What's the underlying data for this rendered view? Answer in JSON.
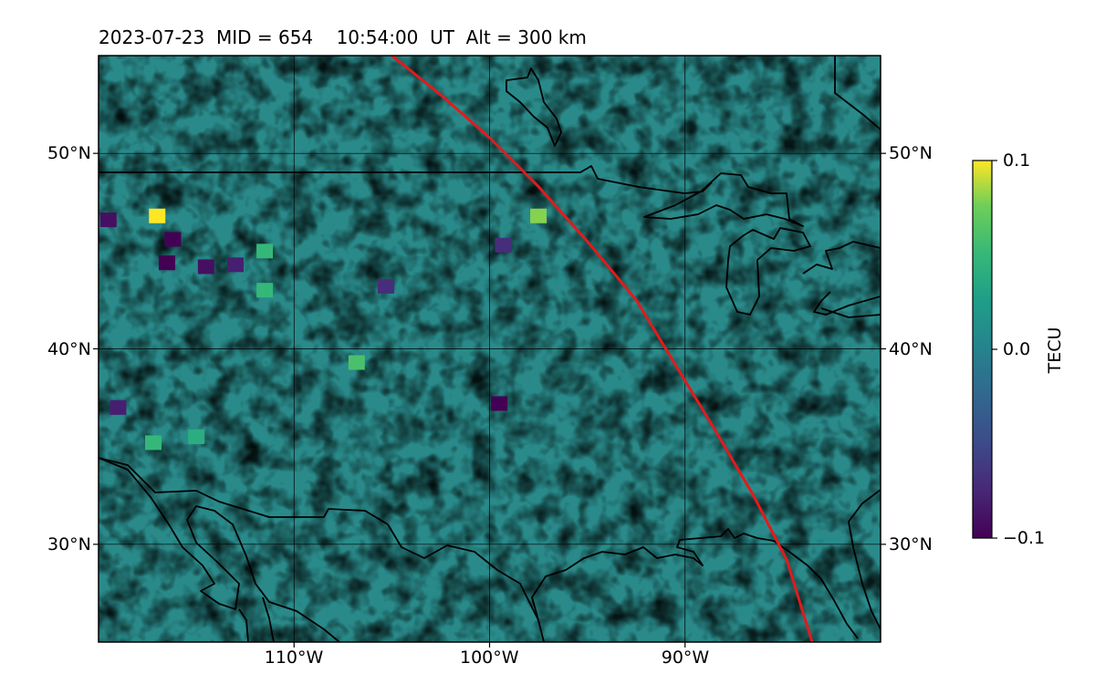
{
  "title": "2023-07-23  MID = 654    10:54:00  UT  Alt = 300 km",
  "map": {
    "projection": "plate-carree",
    "lon_range": [
      -120,
      -80
    ],
    "lat_range": [
      25,
      55
    ],
    "grid": true,
    "lon_ticks": [
      {
        "value": -110,
        "label": "110°W"
      },
      {
        "value": -100,
        "label": "100°W"
      },
      {
        "value": -90,
        "label": "90°W"
      }
    ],
    "lat_ticks": [
      {
        "value": 50,
        "label": "50°N"
      },
      {
        "value": 40,
        "label": "40°N"
      },
      {
        "value": 30,
        "label": "30°N"
      }
    ],
    "field": "TEC perturbation",
    "terminator_color": "#e31a1c",
    "terminator_path": [
      [
        -105.0,
        55.0
      ],
      [
        -102.5,
        53.0
      ],
      [
        -100.0,
        50.8
      ],
      [
        -97.5,
        48.3
      ],
      [
        -95.0,
        45.5
      ],
      [
        -92.5,
        42.5
      ],
      [
        -90.5,
        39.2
      ],
      [
        -88.5,
        35.9
      ],
      [
        -86.5,
        32.5
      ],
      [
        -84.8,
        29.2
      ],
      [
        -83.5,
        25.0
      ]
    ],
    "anomalies": [
      {
        "lon": -117.0,
        "lat": 46.8,
        "value": 0.1
      },
      {
        "lon": -116.2,
        "lat": 45.6,
        "value": -0.1
      },
      {
        "lon": -116.5,
        "lat": 44.4,
        "value": -0.1
      },
      {
        "lon": -114.5,
        "lat": 44.2,
        "value": -0.09
      },
      {
        "lon": -113.0,
        "lat": 44.3,
        "value": -0.08
      },
      {
        "lon": -119.5,
        "lat": 46.6,
        "value": -0.09
      },
      {
        "lon": -117.2,
        "lat": 35.2,
        "value": 0.05
      },
      {
        "lon": -119.0,
        "lat": 37.0,
        "value": -0.08
      },
      {
        "lon": -99.5,
        "lat": 37.2,
        "value": -0.1
      },
      {
        "lon": -105.3,
        "lat": 43.2,
        "value": -0.07
      },
      {
        "lon": -97.5,
        "lat": 46.8,
        "value": 0.08
      },
      {
        "lon": -99.3,
        "lat": 45.3,
        "value": -0.07
      },
      {
        "lon": -111.5,
        "lat": 45.0,
        "value": 0.05
      },
      {
        "lon": -115.0,
        "lat": 35.5,
        "value": 0.04
      },
      {
        "lon": -111.5,
        "lat": 43.0,
        "value": 0.05
      },
      {
        "lon": -106.8,
        "lat": 39.3,
        "value": 0.06
      }
    ]
  },
  "colorbar": {
    "label": "TECU",
    "min": -0.1,
    "max": 0.1,
    "colormap": "viridis",
    "ticks": [
      {
        "value": 0.1,
        "label": "0.1"
      },
      {
        "value": 0.0,
        "label": "0.0"
      },
      {
        "value": -0.1,
        "label": "−0.1"
      }
    ]
  }
}
